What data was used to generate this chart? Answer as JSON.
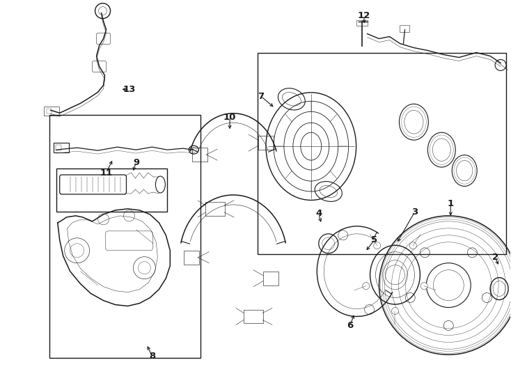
{
  "bg_color": "#ffffff",
  "line_color": "#1a1a1a",
  "fig_width": 7.34,
  "fig_height": 5.4,
  "dpi": 100,
  "lw_main": 1.0,
  "lw_thin": 0.55,
  "lw_thick": 1.4,
  "font_size": 9,
  "arrow_lw": 0.8
}
